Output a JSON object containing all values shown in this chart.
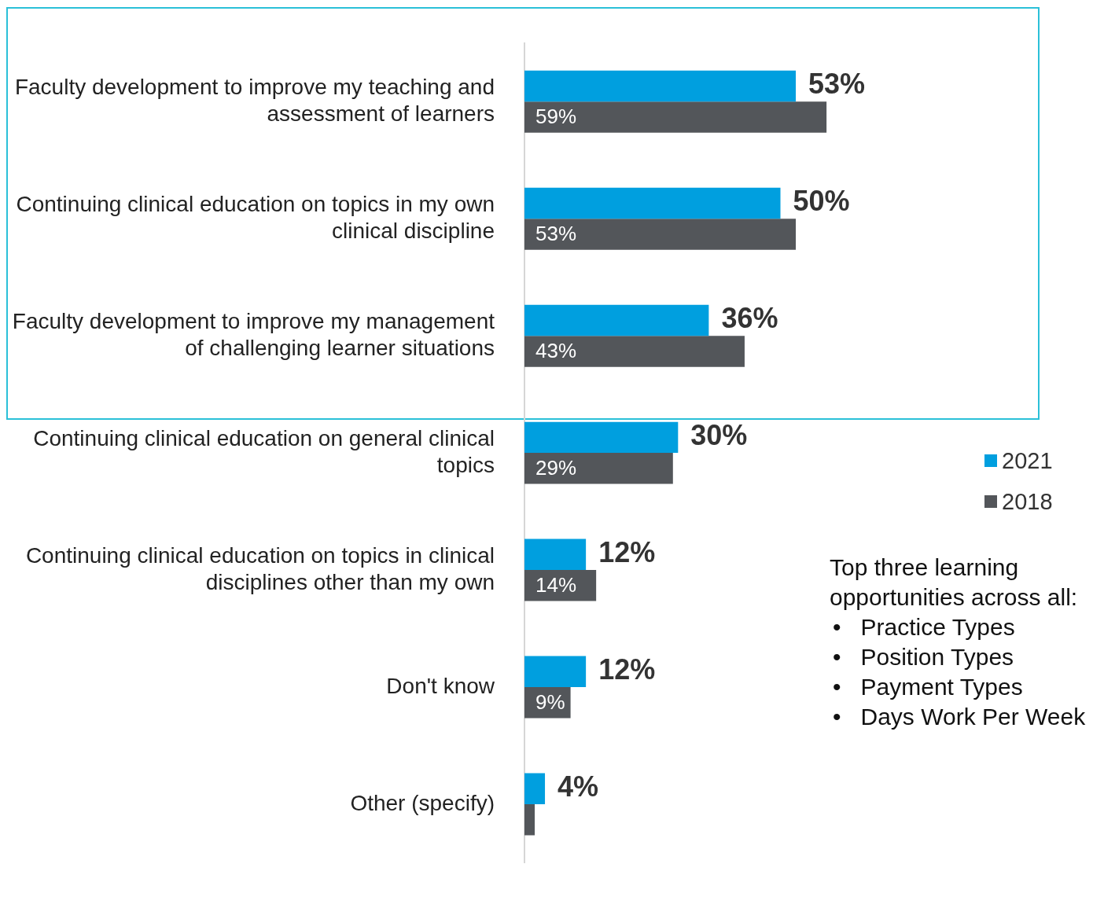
{
  "chart_data": {
    "type": "bar",
    "orientation": "horizontal",
    "categories": [
      "Faculty development to improve my teaching and assessment of learners",
      "Continuing clinical education on topics in my own clinical discipline",
      "Faculty development to improve my management of challenging learner situations",
      "Continuing clinical education on general clinical topics",
      "Continuing clinical education on topics in clinical disciplines other than my own",
      "Don't know",
      "Other (specify)"
    ],
    "series": [
      {
        "name": "2021",
        "color": "#009fdf",
        "values": [
          53,
          50,
          36,
          30,
          12,
          12,
          4
        ],
        "value_labels": [
          "53%",
          "50%",
          "36%",
          "30%",
          "12%",
          "12%",
          "4%"
        ]
      },
      {
        "name": "2018",
        "color": "#53565a",
        "values": [
          59,
          53,
          43,
          29,
          14,
          9,
          2
        ],
        "value_labels": [
          "59%",
          "53%",
          "43%",
          "29%",
          "14%",
          "9%",
          null
        ]
      }
    ],
    "legend": "right",
    "grid": false,
    "annotations": [
      "Top three learning opportunities across all:",
      "•   Practice Types",
      "•   Position Types",
      "•   Payment Types",
      "•   Days Work Per Week"
    ]
  }
}
